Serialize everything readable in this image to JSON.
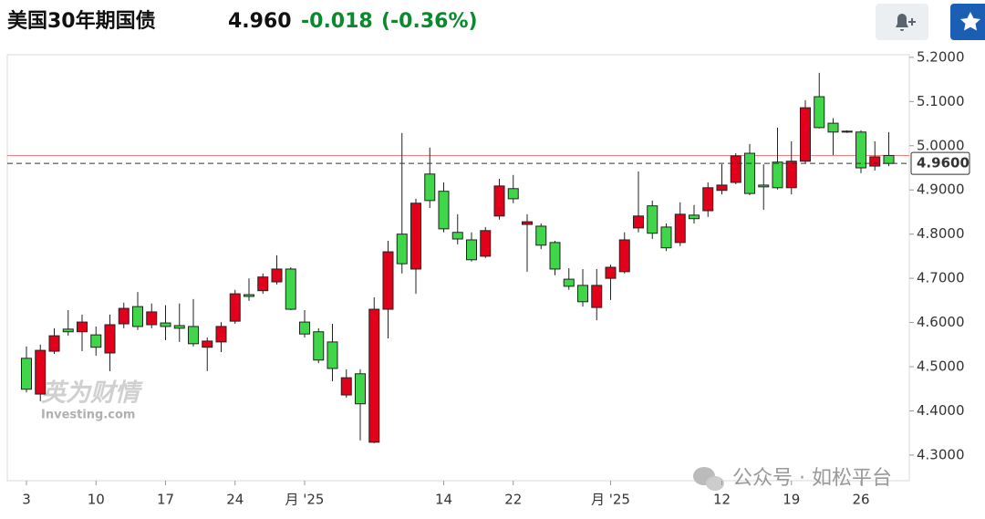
{
  "header": {
    "title": "美国30年期国债",
    "price": "4.960",
    "change": "-0.018",
    "change_pct": "(-0.36%)"
  },
  "watermark": {
    "brand": "英为财情",
    "site": "Investing.com"
  },
  "overlay": "公众号 · 如松平台",
  "chart_data": {
    "type": "candlestick",
    "up_color": "#e3001b",
    "down_color": "#3fd64a",
    "prev_close_color": "#f08080",
    "categories": [
      "3",
      null,
      null,
      null,
      null,
      "10",
      null,
      null,
      null,
      null,
      "17",
      null,
      null,
      null,
      null,
      "24",
      null,
      null,
      null,
      null,
      "月 '25",
      null,
      null,
      null,
      null,
      null,
      null,
      null,
      null,
      null,
      "14",
      null,
      null,
      null,
      null,
      "22",
      null,
      null,
      null,
      null,
      null,
      null,
      "月 '25",
      null,
      null,
      null,
      null,
      null,
      null,
      null,
      "12",
      null,
      null,
      null,
      null,
      "19",
      null,
      null,
      null,
      null,
      "26",
      null,
      null
    ],
    "open": [
      4.519,
      4.438,
      4.535,
      4.585,
      4.579,
      4.572,
      4.531,
      4.597,
      4.636,
      4.595,
      4.599,
      4.593,
      4.591,
      4.544,
      4.556,
      4.603,
      4.663,
      4.672,
      4.692,
      4.721,
      4.601,
      4.579,
      4.556,
      4.436,
      4.484,
      4.329,
      4.63,
      4.8,
      4.721,
      4.936,
      4.897,
      4.804,
      4.787,
      4.75,
      4.841,
      4.903,
      4.822,
      4.818,
      4.781,
      4.698,
      4.684,
      4.634,
      4.7,
      4.715,
      4.814,
      4.864,
      4.816,
      4.781,
      4.843,
      4.853,
      4.899,
      4.917,
      4.983,
      4.911,
      4.963,
      4.905,
      4.965,
      5.111,
      5.051,
      5.033,
      5.031,
      4.954,
      4.978
    ],
    "high": [
      4.546,
      4.55,
      4.587,
      4.628,
      4.618,
      4.591,
      4.618,
      4.645,
      4.669,
      4.643,
      4.639,
      4.643,
      4.653,
      4.566,
      4.601,
      4.674,
      4.7,
      4.711,
      4.752,
      4.725,
      4.628,
      4.587,
      4.597,
      4.494,
      4.494,
      4.657,
      4.785,
      5.029,
      4.88,
      4.996,
      4.917,
      4.845,
      4.804,
      4.816,
      4.925,
      4.934,
      4.845,
      4.824,
      4.785,
      4.723,
      4.721,
      4.721,
      4.731,
      4.804,
      4.942,
      4.876,
      4.824,
      4.872,
      4.866,
      4.917,
      4.958,
      4.983,
      5.004,
      4.958,
      5.041,
      5.01,
      5.103,
      5.165,
      5.062,
      5.035,
      5.035,
      5.01,
      5.031
    ],
    "low": [
      4.442,
      4.422,
      4.529,
      4.57,
      4.535,
      4.525,
      4.49,
      4.587,
      4.583,
      4.587,
      4.56,
      4.556,
      4.546,
      4.49,
      4.533,
      4.597,
      4.649,
      4.665,
      4.686,
      4.628,
      4.566,
      4.508,
      4.467,
      4.43,
      4.333,
      4.327,
      4.564,
      4.711,
      4.665,
      4.859,
      4.804,
      4.777,
      4.738,
      4.746,
      4.833,
      4.87,
      4.715,
      4.766,
      4.707,
      4.674,
      4.636,
      4.605,
      4.651,
      4.711,
      4.804,
      4.789,
      4.762,
      4.773,
      4.824,
      4.839,
      4.89,
      4.913,
      4.888,
      4.855,
      4.901,
      4.89,
      4.961,
      5.039,
      4.979,
      5.029,
      4.938,
      4.944,
      4.954
    ],
    "close": [
      4.449,
      4.537,
      4.57,
      4.579,
      4.601,
      4.544,
      4.595,
      4.632,
      4.591,
      4.624,
      4.591,
      4.587,
      4.552,
      4.558,
      4.591,
      4.665,
      4.659,
      4.703,
      4.721,
      4.63,
      4.574,
      4.515,
      4.496,
      4.475,
      4.416,
      4.63,
      4.76,
      4.733,
      4.87,
      4.876,
      4.812,
      4.789,
      4.742,
      4.808,
      4.909,
      4.88,
      4.828,
      4.775,
      4.721,
      4.682,
      4.647,
      4.684,
      4.725,
      4.787,
      4.841,
      4.802,
      4.769,
      4.845,
      4.835,
      4.905,
      4.911,
      4.977,
      4.892,
      4.907,
      4.905,
      4.965,
      5.086,
      5.041,
      5.031,
      5.031,
      4.95,
      4.975,
      4.96
    ],
    "prev_close": 4.978,
    "price_line": {
      "value": 4.96,
      "label": "4.9600"
    },
    "ylim": [
      4.242,
      5.206
    ],
    "yticks": [
      {
        "value": 5.2,
        "label": "5.2000"
      },
      {
        "value": 5.1,
        "label": "5.1000"
      },
      {
        "value": 5.0,
        "label": "5.0000"
      },
      {
        "value": 4.9,
        "label": "4.9000"
      },
      {
        "value": 4.8,
        "label": "4.8000"
      },
      {
        "value": 4.7,
        "label": "4.7000"
      },
      {
        "value": 4.6,
        "label": "4.6000"
      },
      {
        "value": 4.5,
        "label": "4.5000"
      },
      {
        "value": 4.4,
        "label": "4.4000"
      },
      {
        "value": 4.3,
        "label": "4.3000"
      }
    ],
    "grid": false
  }
}
